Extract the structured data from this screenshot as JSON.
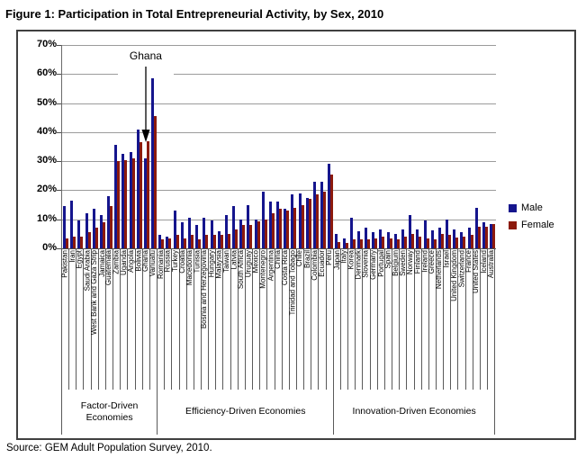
{
  "title": "Figure 1: Participation in Total Entrepreneurial Activity, by Sex, 2010",
  "source": "Source: GEM Adult Population Survey, 2010.",
  "annotation": {
    "label": "Ghana"
  },
  "legend": {
    "male_label": "Male",
    "female_label": "Female"
  },
  "colors": {
    "male": "#15158D",
    "female": "#8C1A0D",
    "gridline": "#9B9B9B",
    "axis": "#4A4A4A"
  },
  "y_axis": {
    "tick_labels": [
      "0%",
      "10%",
      "20%",
      "30%",
      "40%",
      "50%",
      "60%",
      "70%"
    ],
    "max": 70
  },
  "groups": [
    {
      "label": "Factor-Driven Economies",
      "count": 13
    },
    {
      "label": "Efficiency-Driven Economies",
      "count": 24
    },
    {
      "label": "Innovation-Driven Economies",
      "count": 22
    }
  ],
  "chart_data": {
    "type": "bar",
    "title": "Figure 1: Participation in Total Entrepreneurial Activity, by Sex, 2010",
    "xlabel": "",
    "ylabel": "",
    "ylim": [
      0,
      70
    ],
    "grid": true,
    "legend_position": "right",
    "categories": [
      "Pakistan",
      "Iran",
      "Egypt",
      "Saudi Arabia",
      "West Bank and Gaza Strip",
      "Jamaica",
      "Guatemala",
      "Zambia",
      "Uganda",
      "Angola",
      "Bolivia",
      "Ghana",
      "Vanuatu",
      "Romania",
      "Russia",
      "Turkey",
      "Croatia",
      "Macedonia",
      "Tunisia",
      "Bosnia and Herzegovina",
      "Hungary",
      "Malaysia",
      "Taiwan",
      "Latvia",
      "South Africa",
      "Uruguay",
      "Mexico",
      "Montenegro",
      "Argentina",
      "China",
      "Costa Rica",
      "Trinidad and Tobago",
      "Chile",
      "Brazil",
      "Colombia",
      "Ecuador",
      "Peru",
      "Japan",
      "Italy",
      "Korea",
      "Denmark",
      "Slovenia",
      "Germany",
      "Portugal",
      "Spain",
      "Belgium",
      "Sweden",
      "Norway",
      "Finland",
      "Ireland",
      "Greece",
      "Netherlands",
      "Israel",
      "United Kingdom",
      "Switzerland",
      "France",
      "United States",
      "Iceland",
      "Australia"
    ],
    "category_groups": [
      "Factor-Driven Economies",
      "Factor-Driven Economies",
      "Factor-Driven Economies",
      "Factor-Driven Economies",
      "Factor-Driven Economies",
      "Factor-Driven Economies",
      "Factor-Driven Economies",
      "Factor-Driven Economies",
      "Factor-Driven Economies",
      "Factor-Driven Economies",
      "Factor-Driven Economies",
      "Factor-Driven Economies",
      "Factor-Driven Economies",
      "Efficiency-Driven Economies",
      "Efficiency-Driven Economies",
      "Efficiency-Driven Economies",
      "Efficiency-Driven Economies",
      "Efficiency-Driven Economies",
      "Efficiency-Driven Economies",
      "Efficiency-Driven Economies",
      "Efficiency-Driven Economies",
      "Efficiency-Driven Economies",
      "Efficiency-Driven Economies",
      "Efficiency-Driven Economies",
      "Efficiency-Driven Economies",
      "Efficiency-Driven Economies",
      "Efficiency-Driven Economies",
      "Efficiency-Driven Economies",
      "Efficiency-Driven Economies",
      "Efficiency-Driven Economies",
      "Efficiency-Driven Economies",
      "Efficiency-Driven Economies",
      "Efficiency-Driven Economies",
      "Efficiency-Driven Economies",
      "Efficiency-Driven Economies",
      "Efficiency-Driven Economies",
      "Efficiency-Driven Economies",
      "Innovation-Driven Economies",
      "Innovation-Driven Economies",
      "Innovation-Driven Economies",
      "Innovation-Driven Economies",
      "Innovation-Driven Economies",
      "Innovation-Driven Economies",
      "Innovation-Driven Economies",
      "Innovation-Driven Economies",
      "Innovation-Driven Economies",
      "Innovation-Driven Economies",
      "Innovation-Driven Economies",
      "Innovation-Driven Economies",
      "Innovation-Driven Economies",
      "Innovation-Driven Economies",
      "Innovation-Driven Economies",
      "Innovation-Driven Economies",
      "Innovation-Driven Economies",
      "Innovation-Driven Economies",
      "Innovation-Driven Economies",
      "Innovation-Driven Economies",
      "Innovation-Driven Economies",
      "Innovation-Driven Economies"
    ],
    "series": [
      {
        "name": "Male",
        "color": "#15158D",
        "values": [
          14.5,
          16.5,
          9.5,
          12,
          13.5,
          11.5,
          18,
          35.5,
          32.5,
          33,
          41,
          31,
          58.5,
          4.5,
          4,
          13,
          9,
          10.5,
          8,
          10.5,
          9.5,
          6,
          11.5,
          14.5,
          10,
          15,
          10,
          19.5,
          16,
          16,
          13.5,
          18.5,
          19,
          17.5,
          23,
          23,
          29,
          5,
          3.5,
          10.5,
          6,
          7,
          5.5,
          6.5,
          5.5,
          5,
          6.5,
          11.5,
          6.5,
          9.5,
          6.3,
          7.2,
          10,
          6.5,
          5.5,
          7,
          14,
          9,
          8.5
        ]
      },
      {
        "name": "Female",
        "color": "#8C1A0D",
        "values": [
          3.5,
          4,
          4,
          5.5,
          7,
          9,
          14.5,
          30,
          30.5,
          31,
          36.5,
          37,
          45.5,
          3,
          3.5,
          4.5,
          3.5,
          4.5,
          3,
          4.5,
          4.5,
          4.8,
          5,
          6.5,
          8,
          8,
          9.3,
          10,
          12,
          13.5,
          13,
          14,
          14.8,
          17,
          18.5,
          19.5,
          25.5,
          2.3,
          2,
          3,
          3,
          3,
          3.5,
          4,
          3.5,
          3,
          4,
          5,
          4,
          3.5,
          3,
          5,
          4.5,
          3.8,
          4,
          4.5,
          7.5,
          7.5,
          8.5
        ]
      }
    ],
    "annotations": [
      {
        "text": "Ghana",
        "target_category": "Ghana"
      }
    ]
  }
}
